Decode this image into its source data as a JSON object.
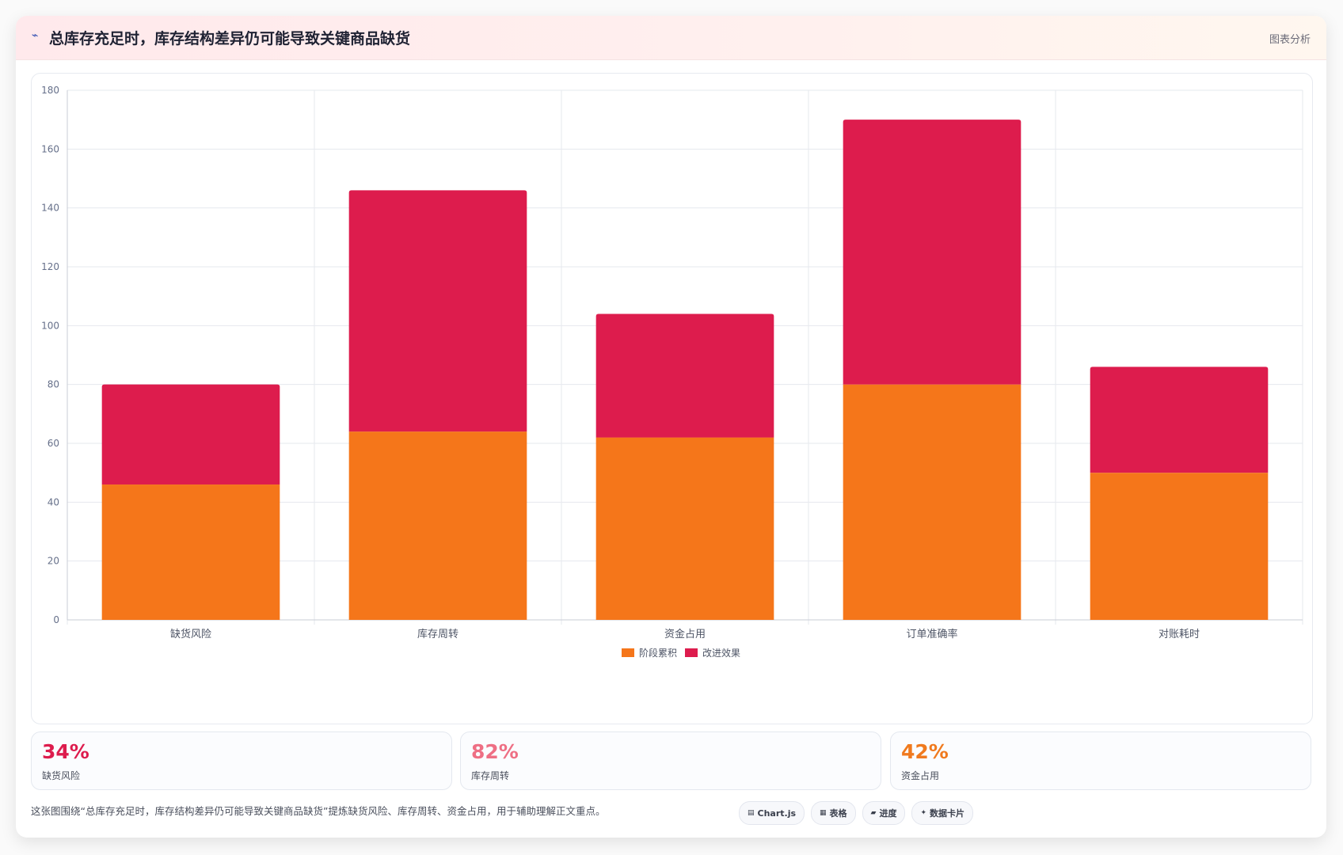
{
  "header": {
    "title_icon": "line-chart-icon",
    "title": "总库存充足时，库存结构差异仍可能导致关键商品缺货",
    "tag": "图表分析"
  },
  "colors": {
    "series_stage": "#f5761a",
    "series_improve": "#dd1c4d",
    "kpi_risk": "#dd1c4d",
    "kpi_turnover": "#ee6f84",
    "kpi_capital": "#f07a1e"
  },
  "chart_data": {
    "type": "bar",
    "stacked": true,
    "categories": [
      "缺货风险",
      "库存周转",
      "资金占用",
      "订单准确率",
      "对账耗时"
    ],
    "series": [
      {
        "name": "阶段累积",
        "values": [
          46,
          64,
          62,
          80,
          50
        ],
        "color": "#f5761a"
      },
      {
        "name": "改进效果",
        "values": [
          34,
          82,
          42,
          90,
          36
        ],
        "color": "#dd1c4d"
      }
    ],
    "ylim": [
      0,
      180
    ],
    "yticks": [
      0,
      20,
      40,
      60,
      80,
      100,
      120,
      140,
      160,
      180
    ],
    "grid": true,
    "legend_position": "bottom"
  },
  "kpis": [
    {
      "value": "34%",
      "label": "缺货风险"
    },
    {
      "value": "82%",
      "label": "库存周转"
    },
    {
      "value": "42%",
      "label": "资金占用"
    }
  ],
  "footer": {
    "note": "这张图围绕“总库存充足时，库存结构差异仍可能导致关键商品缺货”提炼缺货风险、库存周转、资金占用，用于辅助理解正文重点。",
    "chips": [
      {
        "icon": "chart-icon",
        "label": "Chart.js"
      },
      {
        "icon": "table-icon",
        "label": "表格"
      },
      {
        "icon": "progress-icon",
        "label": "进度"
      },
      {
        "icon": "sparkle-icon",
        "label": "数据卡片"
      }
    ]
  }
}
